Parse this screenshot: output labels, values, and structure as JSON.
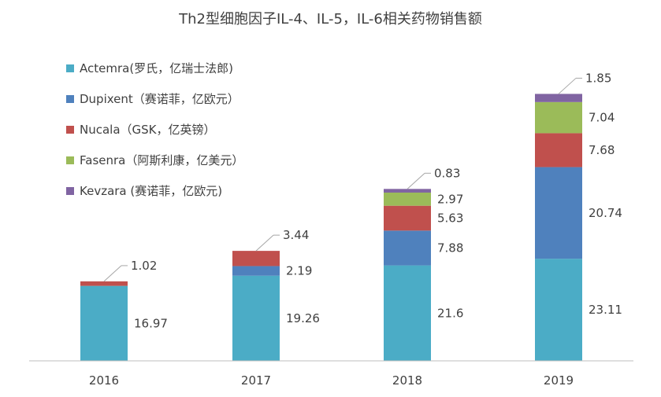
{
  "chart_data": {
    "type": "bar",
    "stacked": true,
    "title": "Th2型细胞因子IL-4、IL-5，IL-6相关药物销售额",
    "categories": [
      "2016",
      "2017",
      "2018",
      "2019"
    ],
    "series": [
      {
        "name": "Actemra(罗氏，亿瑞士法郎)",
        "color": "#4BACC6",
        "values": [
          16.97,
          19.26,
          21.6,
          23.11
        ]
      },
      {
        "name": "Dupixent（赛诺菲，亿欧元）",
        "color": "#4F81BD",
        "values": [
          0,
          2.19,
          7.88,
          20.74
        ]
      },
      {
        "name": "Nucala（GSK，亿英镑）",
        "color": "#C0504D",
        "values": [
          1.02,
          3.44,
          5.63,
          7.68
        ]
      },
      {
        "name": "Fasenra（阿斯利康，亿美元）",
        "color": "#9BBB59",
        "values": [
          0,
          0,
          2.97,
          7.04
        ]
      },
      {
        "name": "Kevzara (赛诺菲，亿欧元)",
        "color": "#8064A2",
        "values": [
          0,
          0,
          0.83,
          1.85
        ]
      }
    ],
    "data_labels": [
      [
        "16.97",
        null,
        "1.02",
        null,
        null
      ],
      [
        "19.26",
        "2.19",
        "3.44",
        null,
        null
      ],
      [
        "21.6",
        "7.88",
        "5.63",
        "2.97",
        "0.83"
      ],
      [
        "23.11",
        "20.74",
        "7.68",
        "7.04",
        "1.85"
      ]
    ],
    "ylim": [
      0,
      65
    ],
    "grid": false,
    "legend_position": "top-left"
  }
}
